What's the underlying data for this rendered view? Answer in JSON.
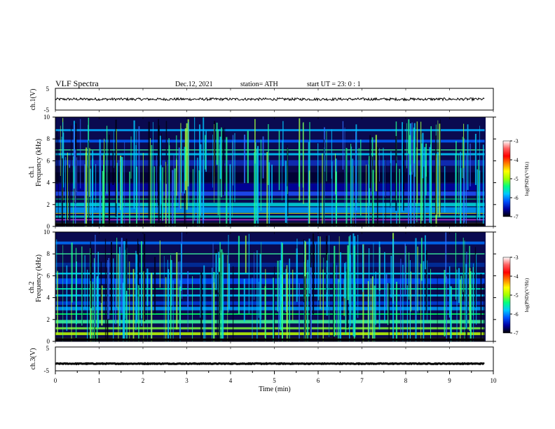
{
  "header": {
    "title": "VLF  Spectra",
    "date": "Dec.12, 2021",
    "station": "station= ATH",
    "start": "start  UT  =    23: 0   : 1"
  },
  "chart_data": [
    {
      "type": "line",
      "ylabel": "ch.1(V)",
      "ylim": [
        -5,
        5
      ],
      "yticks": [
        "5",
        "-5"
      ],
      "level": 0,
      "noise_amplitude": 0.6,
      "color": "#000000"
    },
    {
      "type": "heatmap",
      "ylabel_top": "ch.1",
      "ylabel": "Frequency  (kHz)",
      "ylim": [
        0,
        10
      ],
      "yticks": [
        "0",
        "2",
        "4",
        "6",
        "8",
        "10"
      ],
      "colorbar": {
        "label": "log(PSD)(V²/Hz)",
        "range": [
          -7,
          -3
        ],
        "ticks": [
          "-3",
          "-4",
          "-5",
          "-6",
          "-7"
        ],
        "colors": [
          "#000000",
          "#0000a0",
          "#0050ff",
          "#00c8ff",
          "#00ff80",
          "#a0ff00",
          "#ffff00",
          "#ff8000",
          "#ff0000",
          "#ff6060",
          "#ffffff"
        ]
      }
    },
    {
      "type": "heatmap",
      "ylabel_top": "ch.2",
      "ylabel": "Frequency  (kHz)",
      "ylim": [
        0,
        10
      ],
      "yticks": [
        "0",
        "2",
        "4",
        "6",
        "8",
        "10"
      ],
      "colorbar": {
        "label": "log(PSD)(V²/Hz)",
        "range": [
          -7,
          -3
        ],
        "ticks": [
          "-3",
          "-4",
          "-5",
          "-6",
          "-7"
        ],
        "colors": [
          "#000000",
          "#0000a0",
          "#0050ff",
          "#00c8ff",
          "#00ff80",
          "#a0ff00",
          "#ffff00",
          "#ff8000",
          "#ff0000",
          "#ff6060",
          "#ffffff"
        ]
      }
    },
    {
      "type": "line",
      "ylabel": "ch.3(V)",
      "ylim": [
        -5,
        5
      ],
      "yticks": [
        "5",
        "-5"
      ],
      "level": -2,
      "noise_amplitude": 0.15,
      "color": "#000000"
    }
  ],
  "xaxis": {
    "label": "Time  (min)",
    "xlim": [
      0,
      10
    ],
    "ticks": [
      "0",
      "1",
      "2",
      "3",
      "4",
      "5",
      "6",
      "7",
      "8",
      "9",
      "10"
    ],
    "data_end": 9.8
  }
}
